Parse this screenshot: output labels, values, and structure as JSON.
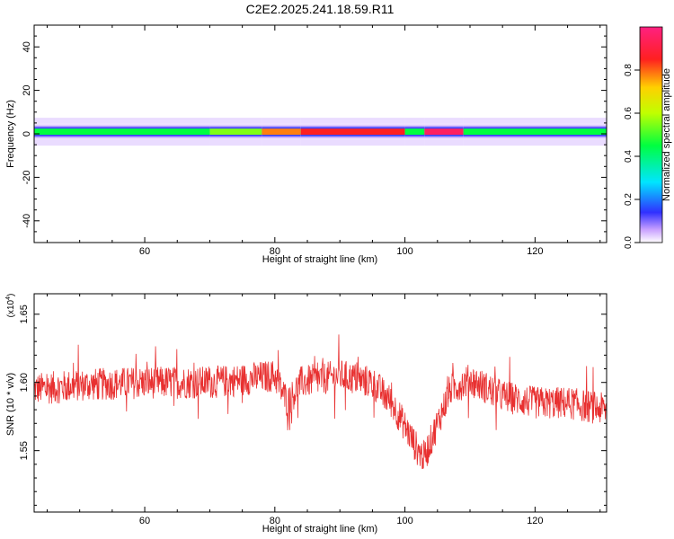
{
  "title": "C2E2.2025.241.18.59.R11",
  "colorbar": {
    "label": "Normalized spectral amplitude",
    "range": [
      0,
      1
    ],
    "ticks": [
      0.0,
      0.2,
      0.4,
      0.6,
      0.8
    ],
    "tick_labels": [
      "0.0",
      "0.2",
      "0.4",
      "0.6",
      "0.8"
    ]
  },
  "chart_data": [
    {
      "type": "heatmap",
      "name": "spectrogram",
      "xlabel": "Height of straight line (km)",
      "ylabel": "Frequency (Hz)",
      "xlim": [
        43,
        131
      ],
      "ylim": [
        -50,
        50
      ],
      "xticks": [
        60,
        80,
        100,
        120
      ],
      "yticks": [
        -40,
        -20,
        0,
        20,
        40
      ],
      "band": {
        "center_hz": 1,
        "half_width_hz": 4,
        "segments": [
          {
            "x0": 43,
            "x1": 70,
            "peak": 0.45
          },
          {
            "x0": 70,
            "x1": 78,
            "peak": 0.55
          },
          {
            "x0": 78,
            "x1": 84,
            "peak": 0.78
          },
          {
            "x0": 84,
            "x1": 100,
            "peak": 0.85
          },
          {
            "x0": 100,
            "x1": 103,
            "peak": 0.45
          },
          {
            "x0": 103,
            "x1": 109,
            "peak": 0.95
          },
          {
            "x0": 109,
            "x1": 131,
            "peak": 0.45
          }
        ]
      }
    },
    {
      "type": "line",
      "name": "snr",
      "xlabel": "Height of straight line (km)",
      "ylabel": "SNR (10 * v/v)",
      "y_multiplier": "(x10",
      "y_multiplier_exp": "4",
      "y_multiplier_close": ")",
      "xlim": [
        43,
        131
      ],
      "ylim": [
        1.505,
        1.665
      ],
      "xticks": [
        60,
        80,
        100,
        120
      ],
      "yticks": [
        1.55,
        1.6,
        1.65
      ],
      "ytick_labels": [
        "1.55",
        "1.60",
        "1.65"
      ],
      "color": "#e83030",
      "envelope": [
        {
          "x": 43,
          "y": 1.595
        },
        {
          "x": 50,
          "y": 1.598
        },
        {
          "x": 60,
          "y": 1.6
        },
        {
          "x": 70,
          "y": 1.6
        },
        {
          "x": 75,
          "y": 1.602
        },
        {
          "x": 80,
          "y": 1.605
        },
        {
          "x": 82,
          "y": 1.585
        },
        {
          "x": 84,
          "y": 1.6
        },
        {
          "x": 90,
          "y": 1.605
        },
        {
          "x": 95,
          "y": 1.6
        },
        {
          "x": 98,
          "y": 1.585
        },
        {
          "x": 100,
          "y": 1.568
        },
        {
          "x": 102,
          "y": 1.55
        },
        {
          "x": 103,
          "y": 1.545
        },
        {
          "x": 105,
          "y": 1.57
        },
        {
          "x": 107,
          "y": 1.595
        },
        {
          "x": 110,
          "y": 1.602
        },
        {
          "x": 115,
          "y": 1.59
        },
        {
          "x": 120,
          "y": 1.585
        },
        {
          "x": 125,
          "y": 1.585
        },
        {
          "x": 131,
          "y": 1.58
        }
      ],
      "noise_amplitude": 0.012
    }
  ]
}
